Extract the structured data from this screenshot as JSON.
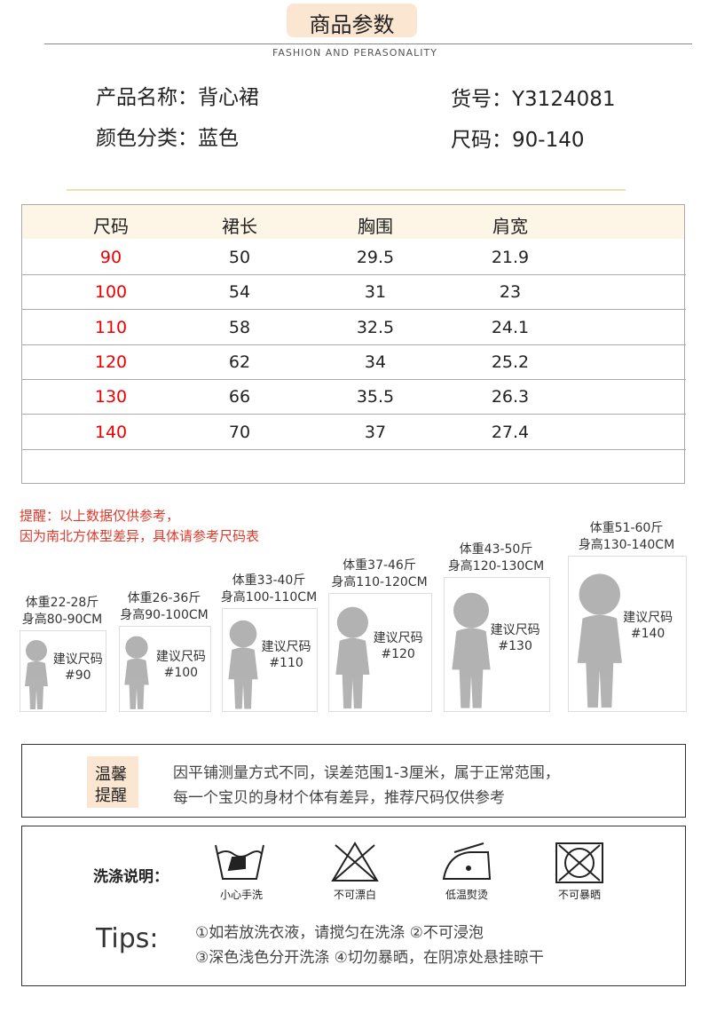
{
  "header": {
    "title": "商品参数",
    "subtitle": "FASHION AND PERASONALITY"
  },
  "info": [
    "产品名称：背心裙",
    "货号：Y3124081",
    "颜色分类：蓝色",
    "尺码：90-140"
  ],
  "table": {
    "headers": [
      "尺码",
      "裙长",
      "胸围",
      "肩宽"
    ],
    "rows": [
      [
        90,
        50,
        29.5,
        21.9
      ],
      [
        100,
        54,
        31,
        23
      ],
      [
        110,
        58,
        32.5,
        24.1
      ],
      [
        120,
        62,
        34,
        25.2
      ],
      [
        130,
        66,
        35.5,
        26.3
      ],
      [
        140,
        70,
        37,
        27.4
      ]
    ]
  },
  "reminder": [
    "提醒：以上数据仅供参考，",
    "因为南北方体型差异，具体请参考尺码表"
  ],
  "kids": [
    {
      "weight": "体重22-28斤",
      "height": "身高80-90CM",
      "label": "建议尺码",
      "size": "#90"
    },
    {
      "weight": "体重26-36斤",
      "height": "身高90-100CM",
      "label": "建议尺码",
      "size": "#100"
    },
    {
      "weight": "体重33-40斤",
      "height": "身高100-110CM",
      "label": "建议尺码",
      "size": "#110"
    },
    {
      "weight": "体重37-46斤",
      "height": "身高110-120CM",
      "label": "建议尺码",
      "size": "#120"
    },
    {
      "weight": "体重43-50斤",
      "height": "身高120-130CM",
      "label": "建议尺码",
      "size": "#130"
    },
    {
      "weight": "体重51-60斤",
      "height": "身高130-140CM",
      "label": "建议尺码",
      "size": "#140"
    }
  ],
  "notice": {
    "tag": [
      "温馨",
      "提醒"
    ],
    "lines": [
      "因平铺测量方式不同，误差范围1-3厘米，属于正常范围，",
      "每一个宝贝的身材个体有差异，推荐尺码仅供参考"
    ]
  },
  "wash": {
    "label": "洗涤说明：",
    "icons": [
      "小心手洗",
      "不可漂白",
      "低温熨烫",
      "不可暴晒"
    ],
    "tips_label": "Tips:",
    "tips": [
      "①如若放洗衣液，请搅匀在洗涤 ②不可浸泡",
      "③深色浅色分开洗涤 ④切勿暴晒，在阴凉处悬挂晾干"
    ]
  }
}
